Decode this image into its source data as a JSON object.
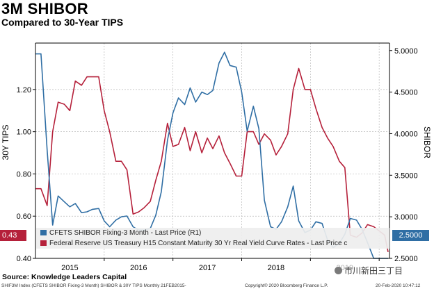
{
  "header": {
    "title": "3M SHIBOR",
    "subtitle": "Compared to 30-Year TIPS"
  },
  "footer": {
    "source": "Source: Knowledge Leaders Capital",
    "left_note": "SHIF3M Index (CFETS SHIBOR Fixing-3 Month) SHIBOR & 30Y TIPS  Monthly 21FEB2015-",
    "copyright": "Copyright© 2020 Bloomberg Finance L.P.",
    "timestamp": "20-Feb-2020 10:47:12",
    "watermark": "市川新田三丁目"
  },
  "badges": {
    "left": "0.43",
    "right": "2.5000"
  },
  "colors": {
    "shibor": "#2f6ea4",
    "tips": "#b5203a"
  },
  "chart_data": {
    "type": "line",
    "title": "3M SHIBOR",
    "subtitle": "Compared to 30-Year TIPS",
    "xlabel": "",
    "y_left_label": "30Y TIPS",
    "y_right_label": "SHIBOR",
    "y_left_lim": [
      0.4,
      1.42
    ],
    "y_right_lim": [
      2.5,
      5.09
    ],
    "y_left_ticks": [
      "0.40",
      "0.60",
      "0.80",
      "1.00",
      "1.20"
    ],
    "y_right_ticks": [
      "2.5000",
      "3.0000",
      "3.5000",
      "4.0000",
      "4.5000",
      "5.0000"
    ],
    "x_tick_labels": [
      "2015",
      "2016",
      "2017",
      "2018",
      "2019"
    ],
    "x_tick_positions": [
      2015.5,
      2016.5,
      2017.5,
      2018.5,
      2019.5
    ],
    "x_range": [
      2015.0,
      2020.15
    ],
    "legend": [
      "CFETS SHIBOR Fixing-3 Month - Last Price (R1)",
      "Federal Reserve US Treasury H15 Constant Maturity 30 Yr Real Yield Curve Rates - Last Price c"
    ],
    "series": [
      {
        "name": "CFETS SHIBOR Fixing-3 Month - Last Price (R1)",
        "axis": "right",
        "x": [
          2015.0,
          2015.08,
          2015.17,
          2015.25,
          2015.33,
          2015.42,
          2015.5,
          2015.58,
          2015.67,
          2015.75,
          2015.83,
          2015.92,
          2016.0,
          2016.08,
          2016.17,
          2016.25,
          2016.33,
          2016.42,
          2016.5,
          2016.58,
          2016.67,
          2016.75,
          2016.83,
          2016.92,
          2017.0,
          2017.08,
          2017.17,
          2017.25,
          2017.33,
          2017.42,
          2017.5,
          2017.58,
          2017.67,
          2017.75,
          2017.83,
          2017.92,
          2018.0,
          2018.08,
          2018.17,
          2018.25,
          2018.33,
          2018.42,
          2018.5,
          2018.58,
          2018.67,
          2018.75,
          2018.83,
          2018.92,
          2019.0,
          2019.08,
          2019.17,
          2019.25,
          2019.33,
          2019.42,
          2019.5,
          2019.58,
          2019.67,
          2019.75,
          2019.83,
          2019.92,
          2020.0,
          2020.08,
          2020.13
        ],
        "values": [
          4.96,
          4.96,
          3.8,
          2.9,
          3.25,
          3.18,
          3.12,
          3.16,
          3.05,
          3.06,
          3.09,
          3.1,
          2.95,
          2.88,
          2.96,
          3.0,
          3.01,
          2.88,
          2.84,
          2.84,
          2.86,
          3.02,
          3.3,
          3.92,
          4.25,
          4.43,
          4.35,
          4.55,
          4.38,
          4.5,
          4.47,
          4.52,
          4.85,
          4.98,
          4.82,
          4.8,
          4.5,
          4.03,
          4.33,
          4.06,
          3.2,
          2.88,
          2.85,
          2.94,
          3.12,
          3.37,
          2.95,
          2.81,
          2.84,
          2.94,
          2.92,
          2.72,
          2.63,
          2.68,
          2.79,
          2.98,
          2.96,
          2.85,
          2.69,
          2.5,
          2.5,
          2.5,
          2.5
        ]
      },
      {
        "name": "Federal Reserve US Treasury H15 Constant Maturity 30 Yr Real Yield Curve Rates - Last Price c",
        "axis": "left",
        "x": [
          2015.0,
          2015.08,
          2015.17,
          2015.25,
          2015.33,
          2015.42,
          2015.5,
          2015.58,
          2015.67,
          2015.75,
          2015.83,
          2015.92,
          2016.0,
          2016.08,
          2016.17,
          2016.25,
          2016.33,
          2016.42,
          2016.5,
          2016.58,
          2016.67,
          2016.75,
          2016.83,
          2016.92,
          2017.0,
          2017.08,
          2017.17,
          2017.25,
          2017.33,
          2017.42,
          2017.5,
          2017.58,
          2017.67,
          2017.75,
          2017.83,
          2017.92,
          2018.0,
          2018.08,
          2018.17,
          2018.25,
          2018.33,
          2018.42,
          2018.5,
          2018.58,
          2018.67,
          2018.75,
          2018.83,
          2018.92,
          2019.0,
          2019.08,
          2019.17,
          2019.25,
          2019.33,
          2019.42,
          2019.5,
          2019.58,
          2019.67,
          2019.75,
          2019.83,
          2019.92,
          2020.0,
          2020.08,
          2020.13
        ],
        "values": [
          0.73,
          0.73,
          0.65,
          1.0,
          1.14,
          1.13,
          1.1,
          1.24,
          1.22,
          1.26,
          1.26,
          1.26,
          1.1,
          1.0,
          0.86,
          0.86,
          0.82,
          0.61,
          0.62,
          0.64,
          0.67,
          0.77,
          0.86,
          1.04,
          0.93,
          0.94,
          1.02,
          0.91,
          1.0,
          0.9,
          0.97,
          0.92,
          0.98,
          0.9,
          0.85,
          0.79,
          0.79,
          1.0,
          1.0,
          0.94,
          0.99,
          0.96,
          0.89,
          0.93,
          0.99,
          1.2,
          1.3,
          1.2,
          1.2,
          1.11,
          1.02,
          0.97,
          0.93,
          0.86,
          0.83,
          0.51,
          0.5,
          0.52,
          0.56,
          0.55,
          0.53,
          0.51,
          0.43
        ]
      }
    ]
  }
}
